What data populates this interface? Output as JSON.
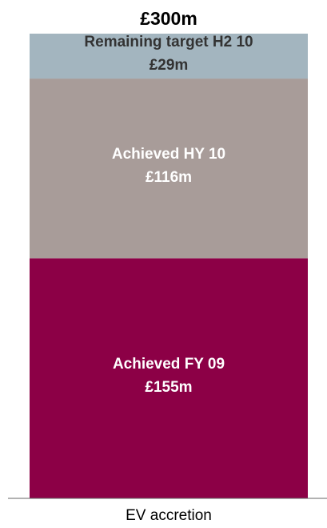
{
  "chart_data": {
    "type": "stacked_bar",
    "categories": [
      "EV accretion"
    ],
    "series": [
      {
        "name": "Achieved FY 09",
        "color": "#8c0046",
        "text_color": "#ffffff",
        "values": [
          155
        ],
        "value_labels": [
          "£155m"
        ]
      },
      {
        "name": "Achieved HY 10",
        "color": "#a89c99",
        "text_color": "#ffffff",
        "values": [
          116
        ],
        "value_labels": [
          "£116m"
        ]
      },
      {
        "name": "Remaining target H2 10",
        "color": "#a3b5bf",
        "text_color": "#333333",
        "values": [
          29
        ],
        "value_labels": [
          "£29m"
        ]
      }
    ],
    "total": {
      "value": 300,
      "label": "£300m"
    },
    "ylim": [
      0,
      300
    ]
  }
}
